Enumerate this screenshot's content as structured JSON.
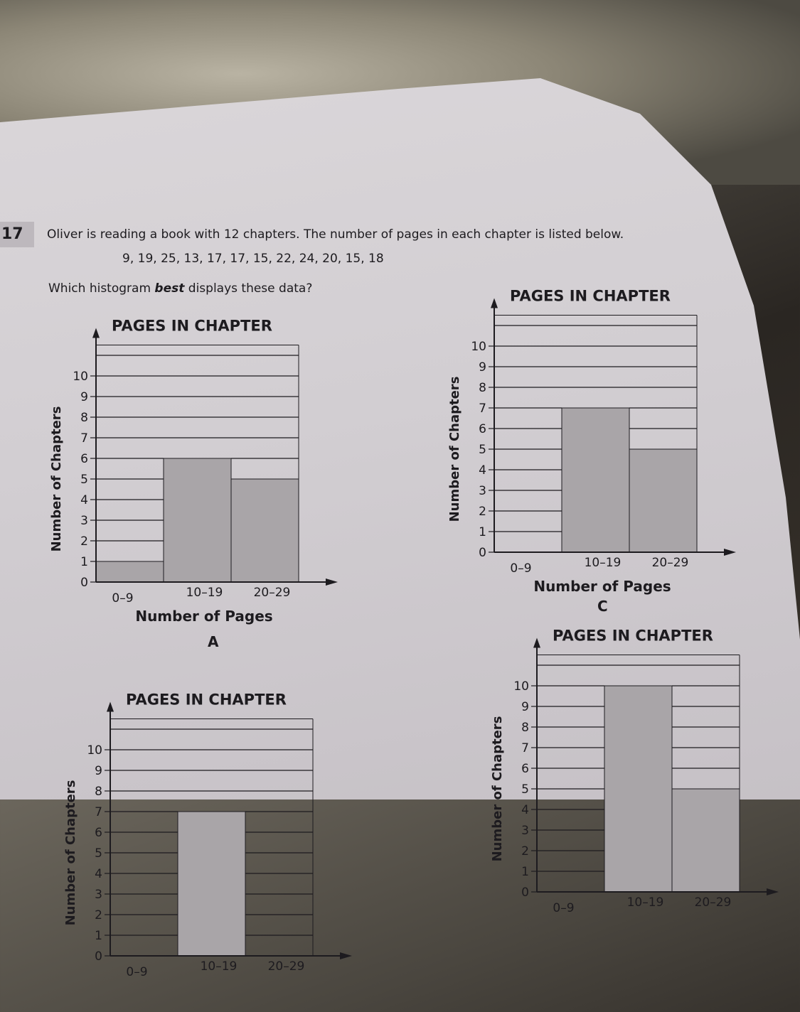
{
  "question": {
    "number": "17",
    "text": "Oliver is reading a book with 12 chapters. The number of pages in each chapter is listed below.",
    "data_list": "9, 19, 25, 13, 17, 17, 15, 22, 24, 20, 15, 18",
    "prompt_before": "Which histogram ",
    "prompt_emphasis": "best",
    "prompt_after": " displays these data?"
  },
  "colors": {
    "bar": "#a9a5a8",
    "ink": "#1d1b1f",
    "paper": "#d6d2d6"
  },
  "chart_data": [
    {
      "id": "A",
      "option_label": "A",
      "type": "bar",
      "title": "PAGES IN CHAPTER",
      "xlabel": "Number of Pages",
      "ylabel": "Number of Chapters",
      "categories": [
        "0–9",
        "10–19",
        "20–29"
      ],
      "values": [
        1,
        6,
        5
      ],
      "yticks": [
        "0",
        "1",
        "2",
        "3",
        "4",
        "5",
        "6",
        "7",
        "8",
        "9",
        "10"
      ],
      "ylim": [
        0,
        10
      ],
      "grid": true
    },
    {
      "id": "C",
      "option_label": "C",
      "type": "bar",
      "title": "PAGES IN CHAPTER",
      "xlabel": "Number of Pages",
      "ylabel": "Number of Chapters",
      "categories": [
        "0–9",
        "10–19",
        "20–29"
      ],
      "values": [
        0,
        7,
        5
      ],
      "yticks": [
        "0",
        "1",
        "2",
        "3",
        "4",
        "5",
        "6",
        "7",
        "8",
        "9",
        "10"
      ],
      "ylim": [
        0,
        10
      ],
      "grid": true
    },
    {
      "id": "B",
      "type": "bar",
      "title": "PAGES IN CHAPTER",
      "ylabel": "Number of Chapters",
      "categories": [
        "0–9",
        "10–19",
        "20–29"
      ],
      "values": [
        null,
        7,
        null
      ],
      "yticks": [
        "0",
        "1",
        "2",
        "3",
        "4",
        "5",
        "6",
        "7",
        "8",
        "9",
        "10"
      ],
      "ylim": [
        0,
        10
      ],
      "grid": true
    },
    {
      "id": "D",
      "type": "bar",
      "title": "PAGES IN CHAPTER",
      "ylabel": "Number of Chapters",
      "categories": [
        "0–9",
        "10–19",
        "20–29"
      ],
      "values": [
        null,
        10,
        5
      ],
      "yticks": [
        "0",
        "1",
        "2",
        "3",
        "4",
        "5",
        "6",
        "7",
        "8",
        "9",
        "10"
      ],
      "ylim": [
        0,
        10
      ],
      "grid": true
    }
  ]
}
